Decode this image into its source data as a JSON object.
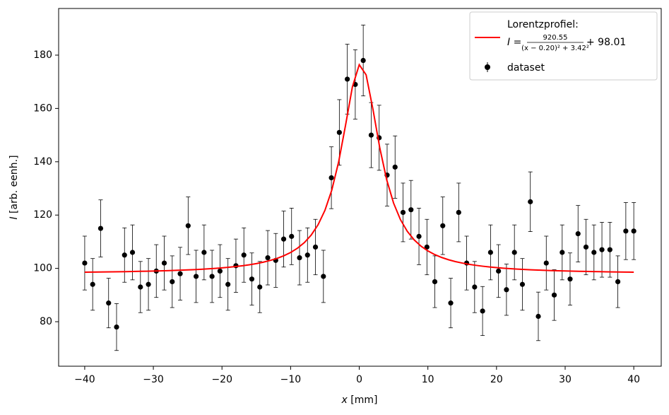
{
  "chart_data": {
    "type": "scatter",
    "xlabel": {
      "var": "x",
      "unit": "[mm]"
    },
    "ylabel": {
      "var": "I",
      "unit": "[arb. eenh.]"
    },
    "xlim": [
      -43.8,
      44.0
    ],
    "ylim": [
      63.3,
      197.5
    ],
    "xticks": [
      {
        "value": -40,
        "label": "−40"
      },
      {
        "value": -30,
        "label": "−30"
      },
      {
        "value": -20,
        "label": "−20"
      },
      {
        "value": -10,
        "label": "−10"
      },
      0,
      10,
      20,
      30,
      40
    ],
    "yticks": [
      80,
      100,
      120,
      140,
      160,
      180
    ],
    "grid": false,
    "legend": "upper right",
    "formula": {
      "lhs": "I =",
      "numerator": "920.55",
      "denominator": "(x − 0.20)² + 3.42²",
      "rhs": "+ 98.01"
    },
    "series": [
      {
        "name": "Lorentzprofiel:",
        "type": "line",
        "color": "#ff0000",
        "x": [
          -40,
          -39,
          -38,
          -37,
          -36,
          -35,
          -34,
          -33,
          -32,
          -31,
          -30,
          -29,
          -28,
          -27,
          -26,
          -25,
          -24,
          -23,
          -22,
          -21,
          -20,
          -19,
          -18,
          -17,
          -16,
          -15,
          -14,
          -13,
          -12,
          -11,
          -10,
          -9,
          -8,
          -7,
          -6,
          -5,
          -4,
          -3,
          -2,
          -1,
          0,
          1,
          2,
          3,
          4,
          5,
          6,
          7,
          8,
          9,
          10,
          11,
          12,
          13,
          14,
          15,
          16,
          17,
          18,
          19,
          20,
          21,
          22,
          23,
          24,
          25,
          26,
          27,
          28,
          29,
          30,
          31,
          32,
          33,
          34,
          35,
          36,
          37,
          38,
          39,
          40
        ],
        "values": [
          98.58,
          98.6,
          98.64,
          98.67,
          98.71,
          98.75,
          98.79,
          98.84,
          98.89,
          98.94,
          99.01,
          99.08,
          99.15,
          99.23,
          99.33,
          99.43,
          99.55,
          99.68,
          99.83,
          100.01,
          100.2,
          100.43,
          100.69,
          101.0,
          101.37,
          101.8,
          102.33,
          102.96,
          103.74,
          104.72,
          105.96,
          107.57,
          109.67,
          112.5,
          116.37,
          121.77,
          129.39,
          139.97,
          153.67,
          168.07,
          176.42,
          172.61,
          159.63,
          145.12,
          133.23,
          124.51,
          118.31,
          113.9,
          110.7,
          108.34,
          106.55,
          105.18,
          104.11,
          103.25,
          102.56,
          102.0,
          101.53,
          101.14,
          100.81,
          100.53,
          100.29,
          100.08,
          99.9,
          99.74,
          99.6,
          99.48,
          99.37,
          99.27,
          99.18,
          99.1,
          99.03,
          98.97,
          98.91,
          98.86,
          98.81,
          98.76,
          98.72,
          98.68,
          98.65,
          98.62,
          98.59
        ]
      },
      {
        "name": "dataset",
        "type": "errorbar",
        "color": "#000000",
        "x": [
          -40,
          -38.84,
          -37.68,
          -36.52,
          -35.36,
          -34.2,
          -33.04,
          -31.88,
          -30.72,
          -29.57,
          -28.41,
          -27.25,
          -26.09,
          -24.93,
          -23.77,
          -22.61,
          -21.45,
          -20.29,
          -19.13,
          -17.97,
          -16.81,
          -15.65,
          -14.49,
          -13.33,
          -12.17,
          -11.01,
          -9.86,
          -8.7,
          -7.54,
          -6.38,
          -5.22,
          -4.06,
          -2.9,
          -1.74,
          -0.58,
          0.58,
          1.74,
          2.9,
          4.06,
          5.22,
          6.38,
          7.54,
          8.7,
          9.86,
          11.01,
          12.17,
          13.33,
          14.49,
          15.65,
          16.81,
          17.97,
          19.13,
          20.29,
          21.45,
          22.61,
          23.77,
          24.93,
          26.09,
          27.25,
          28.41,
          29.57,
          30.72,
          31.88,
          33.04,
          34.2,
          35.36,
          36.52,
          37.68,
          38.84,
          40
        ],
        "values": [
          102,
          94,
          115,
          87,
          78,
          105,
          106,
          93,
          94,
          99,
          102,
          95,
          98,
          116,
          97,
          106,
          97,
          99,
          94,
          101,
          105,
          96,
          93,
          104,
          103,
          111,
          112,
          104,
          105,
          108,
          97,
          134,
          151,
          171,
          169,
          178,
          150,
          149,
          135,
          138,
          121,
          122,
          112,
          108,
          95,
          116,
          87,
          121,
          102,
          93,
          84,
          106,
          99,
          92,
          106,
          94,
          125,
          82,
          102,
          90,
          106,
          96,
          113,
          108,
          106,
          107,
          107,
          95,
          114,
          114
        ],
        "errors": [
          10.1,
          9.7,
          10.7,
          9.3,
          8.8,
          10.2,
          10.3,
          9.6,
          9.7,
          9.9,
          10.1,
          9.7,
          9.9,
          10.8,
          9.8,
          10.3,
          9.8,
          9.9,
          9.7,
          10.0,
          10.2,
          9.8,
          9.6,
          10.2,
          10.1,
          10.5,
          10.6,
          10.2,
          10.2,
          10.4,
          9.8,
          11.6,
          12.3,
          13.1,
          13.0,
          13.3,
          12.2,
          12.2,
          11.6,
          11.7,
          11.0,
          11.0,
          10.6,
          10.4,
          9.7,
          10.8,
          9.3,
          11.0,
          10.1,
          9.6,
          9.2,
          10.3,
          9.9,
          9.6,
          10.3,
          9.7,
          11.2,
          9.1,
          10.1,
          9.5,
          10.3,
          9.8,
          10.6,
          10.4,
          10.3,
          10.3,
          10.3,
          9.7,
          10.7,
          10.7
        ]
      }
    ]
  }
}
